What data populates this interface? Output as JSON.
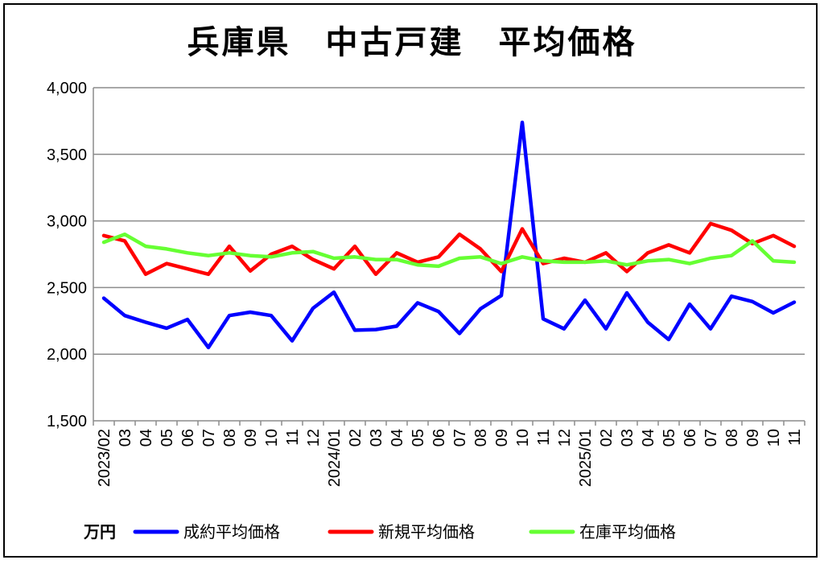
{
  "chart_data": {
    "type": "line",
    "title": "兵庫県　中古戸建　平均価格",
    "unit_label": "万円",
    "ylim": [
      1500,
      4000
    ],
    "yticks": [
      1500,
      2000,
      2500,
      3000,
      3500,
      4000
    ],
    "ytick_labels": [
      "1,500",
      "2,000",
      "2,500",
      "3,000",
      "3,500",
      "4,000"
    ],
    "grid": true,
    "legend_position": "bottom",
    "categories": [
      "2023/02",
      "03",
      "04",
      "05",
      "06",
      "07",
      "08",
      "09",
      "10",
      "11",
      "12",
      "2024/01",
      "02",
      "03",
      "04",
      "05",
      "06",
      "07",
      "08",
      "09",
      "10",
      "11",
      "12",
      "2025/01",
      "02",
      "03",
      "04",
      "05",
      "06",
      "07",
      "08",
      "09",
      "10",
      "11"
    ],
    "series": [
      {
        "name": "成約平均価格",
        "color": "#0000ff",
        "values": [
          2420,
          2290,
          2240,
          2195,
          2260,
          2050,
          2290,
          2315,
          2290,
          2100,
          2345,
          2465,
          2180,
          2185,
          2210,
          2385,
          2320,
          2155,
          2340,
          2440,
          3740,
          2265,
          2190,
          2405,
          2190,
          2460,
          2240,
          2110,
          2375,
          2190,
          2435,
          2395,
          2310,
          2390
        ]
      },
      {
        "name": "新規平均価格",
        "color": "#ff0000",
        "values": [
          2890,
          2850,
          2600,
          2680,
          2640,
          2600,
          2810,
          2625,
          2750,
          2810,
          2710,
          2640,
          2810,
          2600,
          2760,
          2690,
          2730,
          2900,
          2790,
          2620,
          2940,
          2680,
          2720,
          2690,
          2760,
          2620,
          2760,
          2820,
          2760,
          2980,
          2930,
          2830,
          2890,
          2810
        ]
      },
      {
        "name": "在庫平均価格",
        "color": "#66ff33",
        "values": [
          2840,
          2900,
          2810,
          2790,
          2760,
          2740,
          2760,
          2740,
          2730,
          2760,
          2770,
          2720,
          2730,
          2710,
          2710,
          2670,
          2660,
          2720,
          2730,
          2680,
          2730,
          2700,
          2690,
          2690,
          2700,
          2670,
          2700,
          2710,
          2680,
          2720,
          2740,
          2850,
          2700,
          2690
        ]
      }
    ]
  }
}
